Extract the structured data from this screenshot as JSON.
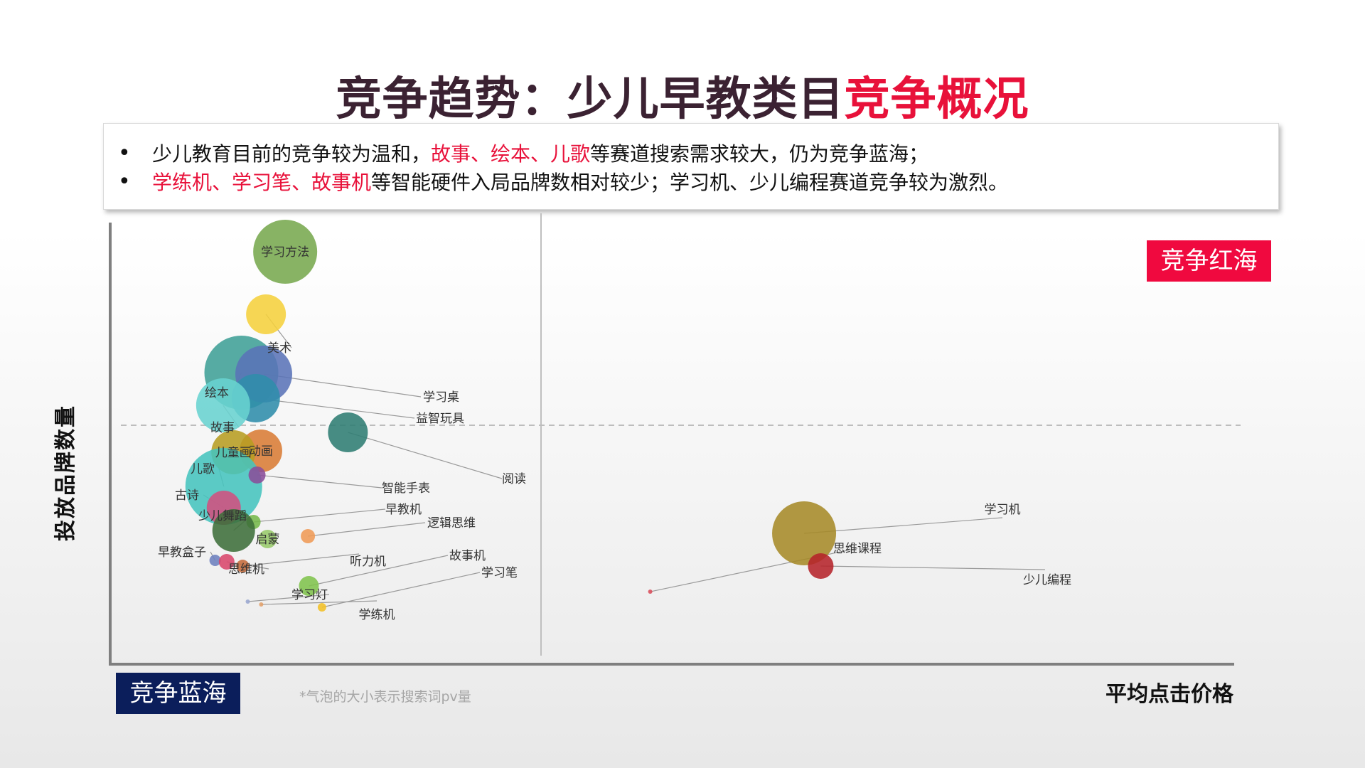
{
  "title": {
    "main": "竞争趋势：少儿早教类目",
    "accent": "竞争概况"
  },
  "summary": {
    "bullet": "•",
    "line1": [
      {
        "text": "少儿教育目前的竞争较为温和，",
        "red": false
      },
      {
        "text": "故事、绘本、儿歌",
        "red": true
      },
      {
        "text": "等赛道搜索需求较大，仍为竞争蓝海；",
        "red": false
      }
    ],
    "line2": [
      {
        "text": "学练机、学习笔、故事机",
        "red": true
      },
      {
        "text": "等智能硬件入局品牌数相对较少；学习机、少儿编程赛道竞争较为激烈。",
        "red": false
      }
    ]
  },
  "labels": {
    "y_axis": "投放品牌数量",
    "x_axis": "平均点击价格",
    "red_sea": "竞争红海",
    "blue_sea": "竞争蓝海",
    "note": "*气泡的大小表示搜索词pv量"
  },
  "colors": {
    "accent_red": "#e8113a",
    "red_sea_bg": "#f0093f",
    "blue_sea_bg": "#0b1e5b"
  },
  "chart_data": {
    "type": "scatter",
    "title": "",
    "xlabel": "平均点击价格",
    "ylabel": "投放品牌数量",
    "note": "*气泡的大小表示搜索词pv量",
    "axis_ticks_shown": false,
    "gridlines": {
      "vertical_divider": true,
      "horizontal_dashed": true
    },
    "points": [
      {
        "name": "学习方法",
        "x": 5.47,
        "y": 64.44,
        "size": 45,
        "color": "#77a84f",
        "label_inside": true
      },
      {
        "name": "美术",
        "x": 4.87,
        "y": 54.67,
        "size": 28,
        "color": "#f5d03c"
      },
      {
        "name": "绘本",
        "x": 4.1,
        "y": 45.56,
        "size": 52,
        "color": "#3f9f96"
      },
      {
        "name": "学习桌",
        "x": 4.8,
        "y": 45.33,
        "size": 40,
        "color": "#5a73b7"
      },
      {
        "name": "益智玩具",
        "x": 4.55,
        "y": 41.56,
        "size": 34,
        "color": "#2f8dab"
      },
      {
        "name": "故事",
        "x": 3.53,
        "y": 40.44,
        "size": 38,
        "color": "#69d3d0"
      },
      {
        "name": "阅读",
        "x": 7.43,
        "y": 36.22,
        "size": 28,
        "color": "#2f7d73"
      },
      {
        "name": "动画",
        "x": 4.71,
        "y": 33.33,
        "size": 30,
        "color": "#d97c35",
        "label_inside": true
      },
      {
        "name": "儿童画",
        "x": 3.85,
        "y": 33.11,
        "size": 31,
        "color": "#b79d22",
        "label_inside": true
      },
      {
        "name": "儿歌",
        "x": 3.55,
        "y": 27.78,
        "size": 54,
        "color": "#45c4be"
      },
      {
        "name": "智能手表",
        "x": 4.59,
        "y": 29.56,
        "size": 12,
        "color": "#8a4d9a"
      },
      {
        "name": "古诗",
        "x": 3.55,
        "y": 24.44,
        "size": 24,
        "color": "#d2507f"
      },
      {
        "name": "早教机",
        "x": 4.48,
        "y": 22.22,
        "size": 10,
        "color": "#75b84a"
      },
      {
        "name": "少儿舞蹈",
        "x": 3.86,
        "y": 20.89,
        "size": 30,
        "color": "#3e6e3a"
      },
      {
        "name": "启蒙",
        "x": 4.92,
        "y": 19.56,
        "size": 13,
        "color": "#97c96a"
      },
      {
        "name": "逻辑思维",
        "x": 6.18,
        "y": 20.0,
        "size": 10,
        "color": "#ef9a55"
      },
      {
        "name": "早教盒子",
        "x": 3.28,
        "y": 16.22,
        "size": 8,
        "color": "#6c7fbe"
      },
      {
        "name": "思维机",
        "x": 3.64,
        "y": 16.0,
        "size": 11,
        "color": "#d8476b"
      },
      {
        "name": "听力机",
        "x": 4.14,
        "y": 15.33,
        "size": 9,
        "color": "#c56b3b"
      },
      {
        "name": "故事机",
        "x": 6.21,
        "y": 12.22,
        "size": 14,
        "color": "#7fc34c"
      },
      {
        "name": "学习笔",
        "x": 6.62,
        "y": 8.89,
        "size": 6,
        "color": "#f2c027"
      },
      {
        "name": "学练机",
        "x": 4.72,
        "y": 9.33,
        "size": 3,
        "color": "#e2a06a"
      },
      {
        "name": "学习灯",
        "x": 4.3,
        "y": 9.78,
        "size": 3,
        "color": "#9aa7d0"
      },
      {
        "name": "思维课程",
        "x": 16.88,
        "y": 11.33,
        "size": 3,
        "color": "#d94c5a"
      },
      {
        "name": "学习机",
        "x": 21.69,
        "y": 20.44,
        "size": 45,
        "color": "#a68a28"
      },
      {
        "name": "少儿编程",
        "x": 22.21,
        "y": 15.33,
        "size": 18,
        "color": "#b5232a"
      }
    ]
  }
}
